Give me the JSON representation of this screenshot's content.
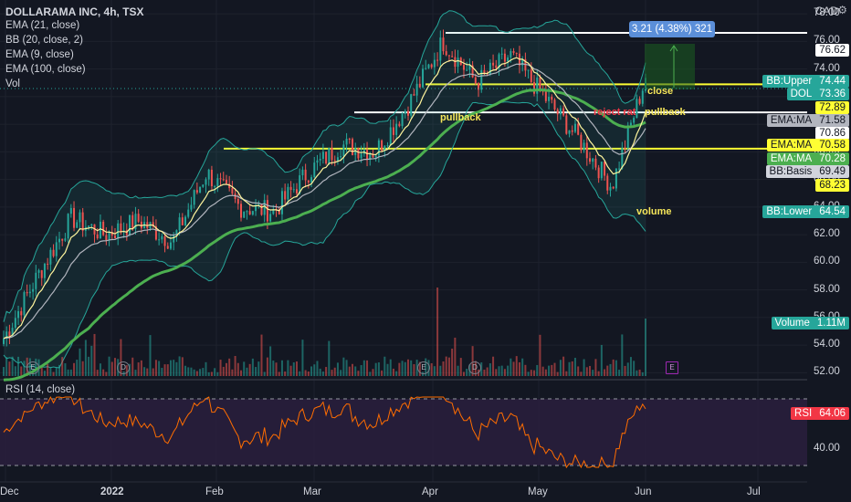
{
  "legend": {
    "title": "DOLLARAMA INC, 4h, TSX",
    "lines": [
      "EMA (21, close)",
      "BB (20, close, 2)",
      "EMA (9, close)",
      "EMA (100, close)",
      "Vol"
    ]
  },
  "currency": "CAD",
  "measure_label": "3.21 (4.38%) 321",
  "annotations": {
    "close": "close",
    "pullback_left": "pullback",
    "reject": "reject rat",
    "pullback_right": "pullback",
    "volume": "volume"
  },
  "events": [
    "E",
    "D",
    "E",
    "D",
    "E"
  ],
  "rsi_title": "RSI (14, close)",
  "price_ticks": [
    "78.00",
    "76.00",
    "74.00",
    "72.00",
    "70.00",
    "68.00",
    "66.00",
    "64.00",
    "62.00",
    "60.00",
    "58.00",
    "56.00",
    "54.00",
    "52.00"
  ],
  "rsi_ticks": [
    "60.00",
    "40.00"
  ],
  "x_ticks": [
    "Dec",
    "2022",
    "Feb",
    "Mar",
    "Apr",
    "May",
    "Jun",
    "Jul"
  ],
  "tags": [
    {
      "label": "",
      "value": "76.62",
      "bg": "#ffffff",
      "fg": "#131722"
    },
    {
      "label": "BB:Upper",
      "value": "74.44",
      "bg": "#26a69a",
      "fg": "#ffffff"
    },
    {
      "label": "DOL",
      "value": "73.36",
      "bg": "#26a69a",
      "fg": "#ffffff"
    },
    {
      "label": "",
      "value": "72.89",
      "bg": "#ffff33",
      "fg": "#131722"
    },
    {
      "label": "EMA:MA",
      "value": "71.58",
      "bg": "#b2b5be",
      "fg": "#131722"
    },
    {
      "label": "",
      "value": "70.86",
      "bg": "#ffffff",
      "fg": "#131722"
    },
    {
      "label": "EMA:MA",
      "value": "70.58",
      "bg": "#ffff33",
      "fg": "#131722"
    },
    {
      "label": "EMA:MA",
      "value": "70.28",
      "bg": "#4caf50",
      "fg": "#ffffff"
    },
    {
      "label": "BB:Basis",
      "value": "69.49",
      "bg": "#d1d4dc",
      "fg": "#131722"
    },
    {
      "label": "",
      "value": "68.23",
      "bg": "#ffff33",
      "fg": "#131722"
    },
    {
      "label": "BB:Lower",
      "value": "64.54",
      "bg": "#26a69a",
      "fg": "#ffffff"
    },
    {
      "label": "Volume",
      "value": "1.11M",
      "bg": "#26a69a",
      "fg": "#ffffff"
    },
    {
      "label": "RSI",
      "value": "64.06",
      "bg": "#f23645",
      "fg": "#ffffff"
    }
  ],
  "colors": {
    "up": "#26a69a",
    "down": "#ef5350",
    "ema100": "#4caf50",
    "ema21": "#b2b5be",
    "ema9": "#fff59d",
    "bb": "#26a69a",
    "level": "#ffff33",
    "rsi": "#ff6d00",
    "rsi_bg": "#2a1f3d"
  },
  "chart_data": {
    "type": "candlestick",
    "symbol": "DOLLARAMA INC",
    "timeframe": "4h",
    "exchange": "TSX",
    "ylim": [
      51.5,
      79
    ],
    "rsi_ylim": [
      22,
      78
    ],
    "x_range": [
      "Dec",
      "Jul"
    ],
    "close_path": [
      [
        "Dec",
        54.5
      ],
      [
        "mid-Dec",
        59.0
      ],
      [
        "late-Dec",
        63.2
      ],
      [
        "2022",
        62.0
      ],
      [
        "mid-Jan",
        63.0
      ],
      [
        "late-Jan",
        61.5
      ],
      [
        "Feb",
        66.5
      ],
      [
        "mid-Feb",
        64.0
      ],
      [
        "late-Feb",
        63.7
      ],
      [
        "Mar",
        66.5
      ],
      [
        "mid-Mar",
        68.5
      ],
      [
        "late-Mar",
        68.0
      ],
      [
        "Apr",
        71.5
      ],
      [
        "early-Apr",
        76.0
      ],
      [
        "mid-Apr",
        73.0
      ],
      [
        "late-Apr",
        75.0
      ],
      [
        "May",
        72.0
      ],
      [
        "mid-May",
        69.0
      ],
      [
        "late-May",
        65.5
      ],
      [
        "Jun",
        73.36
      ]
    ],
    "levels": [
      76.62,
      72.89,
      70.86,
      68.23
    ],
    "last_price": 73.36,
    "bb": {
      "upper": 74.44,
      "basis": 69.49,
      "lower": 64.54
    },
    "ema": {
      "ema21": 71.58,
      "ema9": 70.58,
      "ema100": 70.28
    },
    "volume_last": "1.11M",
    "rsi_last": 64.06,
    "rsi_bands": [
      70,
      30
    ],
    "measure": {
      "change": 3.21,
      "percent": 4.38,
      "ticks": 321
    }
  }
}
